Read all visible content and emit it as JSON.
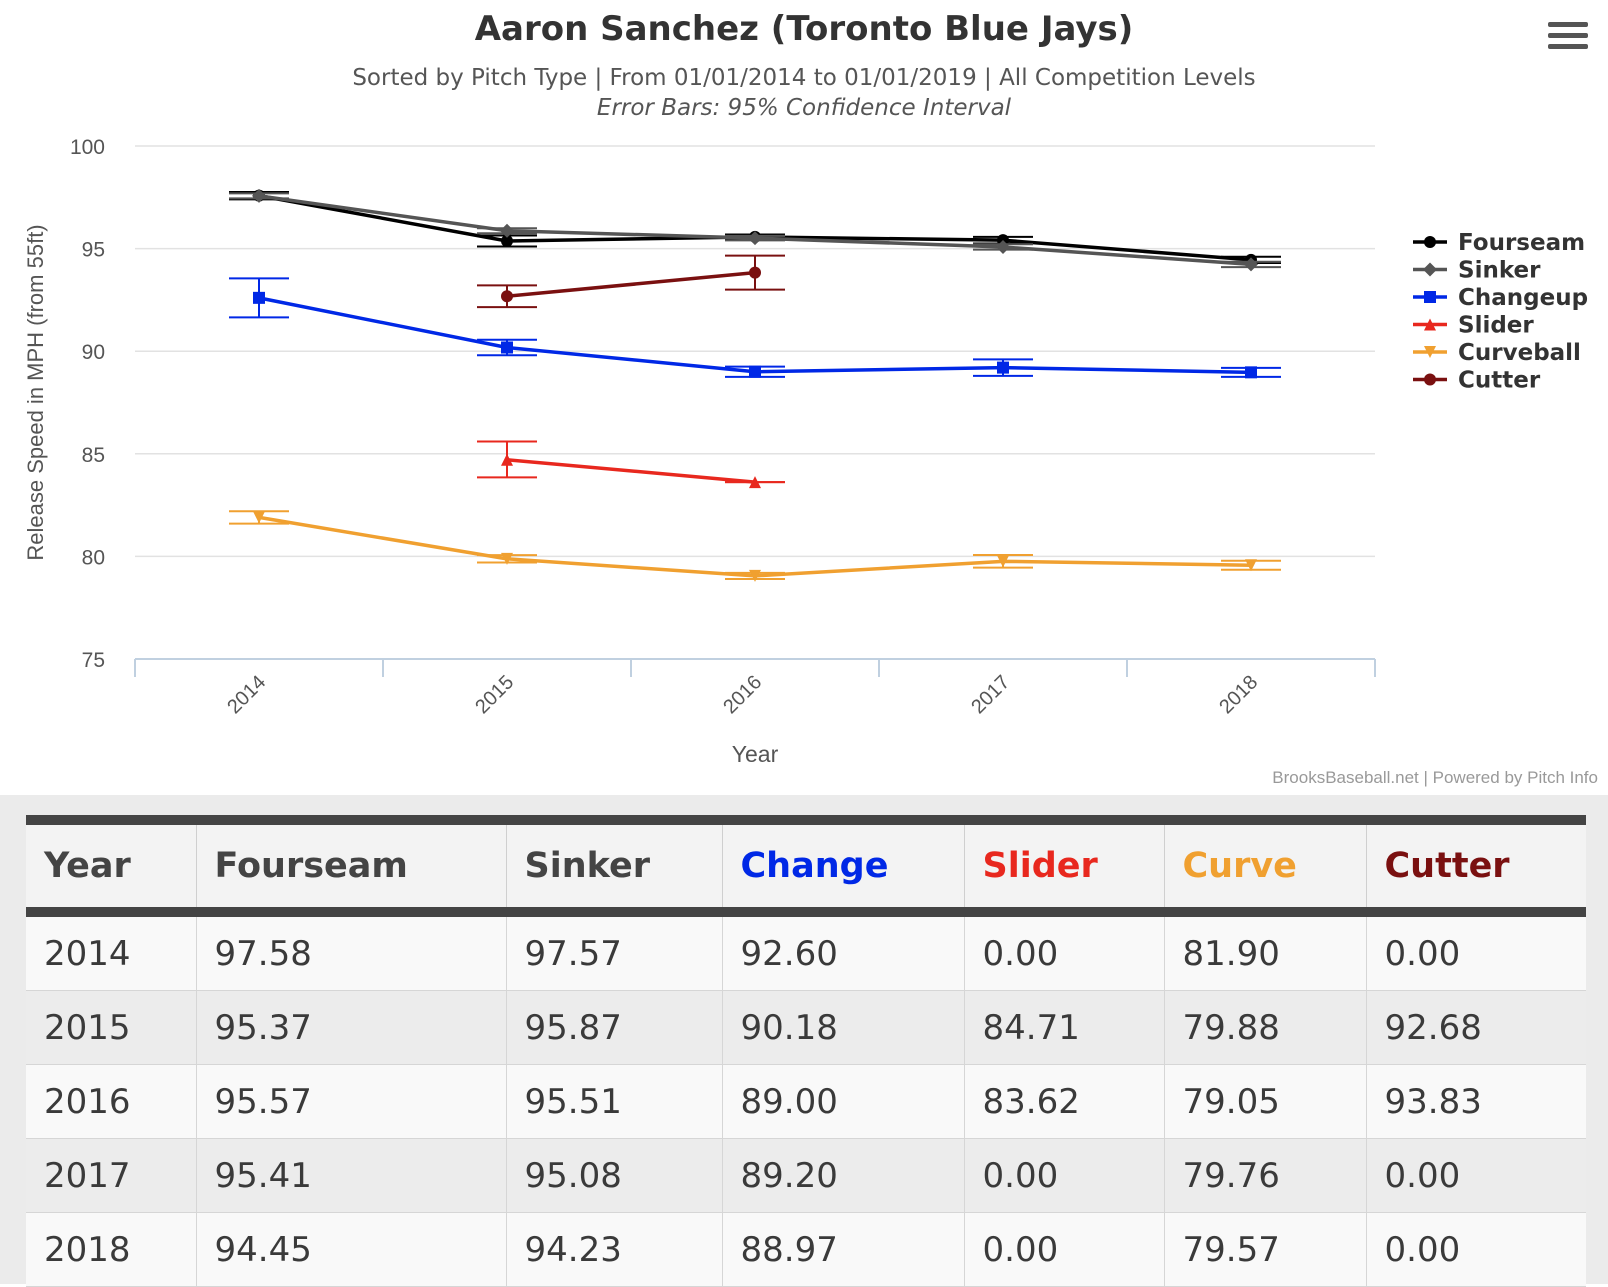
{
  "chart_data": {
    "type": "line",
    "title": "Aaron Sanchez (Toronto Blue Jays)",
    "subtitle": "Sorted by Pitch Type | From 01/01/2014 to 01/01/2019 | All Competition Levels",
    "subtitle2": "Error Bars: 95% Confidence Interval",
    "xlabel": "Year",
    "ylabel": "Release Speed in MPH (from 55ft)",
    "categories": [
      "2014",
      "2015",
      "2016",
      "2017",
      "2018"
    ],
    "yticks": [
      "75",
      "80",
      "85",
      "90",
      "95",
      "100"
    ],
    "ylim": [
      75,
      100
    ],
    "grid": true,
    "legend_position": "right",
    "credits": "BrooksBaseball.net | Powered by Pitch Info",
    "series": [
      {
        "name": "Fourseam",
        "color": "#000000",
        "marker": "circle",
        "values": [
          97.58,
          95.37,
          95.57,
          95.41,
          94.45
        ],
        "error_low": [
          97.4,
          95.1,
          95.45,
          95.25,
          94.3
        ],
        "error_high": [
          97.76,
          95.64,
          95.69,
          95.57,
          94.6
        ]
      },
      {
        "name": "Sinker",
        "color": "#555555",
        "marker": "diamond",
        "values": [
          97.57,
          95.87,
          95.51,
          95.08,
          94.23
        ],
        "error_low": [
          97.45,
          95.75,
          95.4,
          94.95,
          94.1
        ],
        "error_high": [
          97.69,
          95.99,
          95.62,
          95.21,
          94.36
        ]
      },
      {
        "name": "Changeup",
        "color": "#0028e6",
        "marker": "square",
        "values": [
          92.6,
          90.18,
          89.0,
          89.2,
          88.97
        ],
        "error_low": [
          91.65,
          89.8,
          88.75,
          88.8,
          88.75
        ],
        "error_high": [
          93.55,
          90.56,
          89.25,
          89.6,
          89.19
        ]
      },
      {
        "name": "Slider",
        "color": "#e8281e",
        "marker": "triangle",
        "values": [
          null,
          84.71,
          83.62,
          null,
          null
        ],
        "error_low": [
          null,
          83.85,
          83.62,
          null,
          null
        ],
        "error_high": [
          null,
          85.6,
          83.62,
          null,
          null
        ]
      },
      {
        "name": "Curveball",
        "color": "#f0a030",
        "marker": "triangle-down",
        "values": [
          81.9,
          79.88,
          79.05,
          79.76,
          79.57
        ],
        "error_low": [
          81.6,
          79.7,
          78.9,
          79.45,
          79.35
        ],
        "error_high": [
          82.2,
          80.06,
          79.2,
          80.07,
          79.79
        ]
      },
      {
        "name": "Cutter",
        "color": "#7a1010",
        "marker": "circle",
        "values": [
          null,
          92.68,
          93.83,
          null,
          null
        ],
        "error_low": [
          null,
          92.15,
          93.0,
          null,
          null
        ],
        "error_high": [
          null,
          93.21,
          94.66,
          null,
          null
        ]
      }
    ]
  },
  "table": {
    "headers": [
      {
        "label": "Year",
        "color": "#444444"
      },
      {
        "label": "Fourseam",
        "color": "#444444"
      },
      {
        "label": "Sinker",
        "color": "#444444"
      },
      {
        "label": "Change",
        "color": "#0028e6"
      },
      {
        "label": "Slider",
        "color": "#e8281e"
      },
      {
        "label": "Curve",
        "color": "#f0a030"
      },
      {
        "label": "Cutter",
        "color": "#7a1010"
      }
    ],
    "rows": [
      [
        "2014",
        "97.58",
        "97.57",
        "92.60",
        "0.00",
        "81.90",
        "0.00"
      ],
      [
        "2015",
        "95.37",
        "95.87",
        "90.18",
        "84.71",
        "79.88",
        "92.68"
      ],
      [
        "2016",
        "95.57",
        "95.51",
        "89.00",
        "83.62",
        "79.05",
        "93.83"
      ],
      [
        "2017",
        "95.41",
        "95.08",
        "89.20",
        "0.00",
        "79.76",
        "0.00"
      ],
      [
        "2018",
        "94.45",
        "94.23",
        "88.97",
        "0.00",
        "79.57",
        "0.00"
      ]
    ]
  }
}
